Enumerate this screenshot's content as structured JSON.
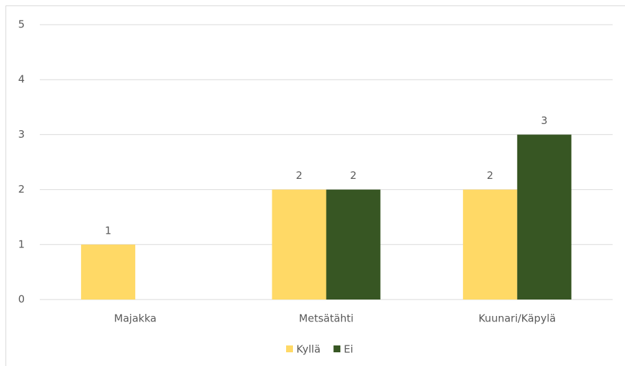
{
  "chart_data": {
    "type": "bar",
    "categories": [
      "Majakka",
      "Metsätähti",
      "Kuunari/Käpylä"
    ],
    "series": [
      {
        "name": "Kyllä",
        "color": "#ffd966",
        "values": [
          1,
          2,
          2
        ]
      },
      {
        "name": "Ei",
        "color": "#375623",
        "values": [
          null,
          2,
          3
        ]
      }
    ],
    "ylim": [
      0,
      5
    ],
    "yticks": [
      0,
      1,
      2,
      3,
      4,
      5
    ],
    "grid": true,
    "legend": "bottom"
  }
}
